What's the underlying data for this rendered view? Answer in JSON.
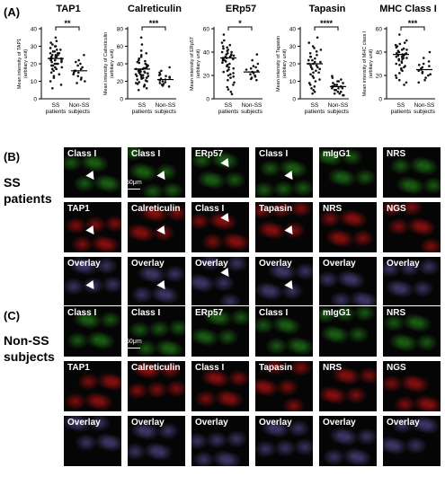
{
  "panel_a_label": "(A)",
  "panel_b_label": "(B)",
  "panel_c_label": "(C)",
  "group_b": "SS patients",
  "group_c": "Non-SS subjects",
  "scale_bar": "50μm",
  "colors": {
    "green": "#1f6f16",
    "red": "#a01010",
    "overlay": "#4a3f7a",
    "white": "#ffffff"
  },
  "chart_data": [
    {
      "type": "scatter",
      "title": "TAP1",
      "ylabel": "Mean intensity of TAP1 (arbitary unit)",
      "categories": [
        "SS patients",
        "Non-SS subjects"
      ],
      "ylim": [
        0,
        40
      ],
      "yticks": [
        0,
        10,
        20,
        30,
        40
      ],
      "significance": "**",
      "means": [
        23,
        16
      ],
      "series": [
        {
          "values": [
            35,
            33,
            32,
            31,
            30,
            30,
            29,
            28,
            28,
            27,
            27,
            26,
            26,
            26,
            25,
            25,
            25,
            24,
            24,
            24,
            23,
            23,
            23,
            22,
            22,
            22,
            21,
            21,
            20,
            20,
            20,
            19,
            19,
            18,
            18,
            17,
            17,
            16,
            15,
            14,
            13,
            12,
            10,
            8,
            6
          ]
        },
        {
          "values": [
            25,
            22,
            21,
            20,
            19,
            18,
            17,
            16,
            16,
            15,
            15,
            14,
            13,
            12,
            11,
            10,
            9
          ]
        }
      ]
    },
    {
      "type": "scatter",
      "title": "Calreticulin",
      "ylabel": "Mean intensity of Calreticulin (arbitary unit)",
      "categories": [
        "SS patients",
        "Non-SS subjects"
      ],
      "ylim": [
        0,
        80
      ],
      "yticks": [
        0,
        20,
        40,
        60,
        80
      ],
      "significance": "***",
      "means": [
        34,
        22
      ],
      "series": [
        {
          "values": [
            70,
            62,
            55,
            52,
            50,
            48,
            46,
            44,
            43,
            42,
            41,
            40,
            39,
            38,
            37,
            36,
            35,
            35,
            34,
            34,
            33,
            33,
            32,
            31,
            31,
            30,
            30,
            29,
            28,
            28,
            27,
            27,
            26,
            26,
            25,
            24,
            24,
            23,
            22,
            21,
            20,
            19,
            18,
            17,
            16,
            15,
            14,
            12,
            10
          ]
        },
        {
          "values": [
            36,
            32,
            30,
            28,
            27,
            26,
            25,
            24,
            23,
            22,
            21,
            20,
            19,
            18,
            17,
            16,
            15,
            14
          ]
        }
      ]
    },
    {
      "type": "scatter",
      "title": "ERp57",
      "ylabel": "Mean intensity of ERp57 (arbitary unit)",
      "categories": [
        "SS patients",
        "Non-SS subjects"
      ],
      "ylim": [
        0,
        60
      ],
      "yticks": [
        0,
        20,
        40,
        60
      ],
      "significance": "*",
      "means": [
        35,
        23
      ],
      "series": [
        {
          "values": [
            55,
            50,
            48,
            46,
            45,
            44,
            43,
            42,
            41,
            40,
            40,
            39,
            38,
            38,
            37,
            37,
            36,
            36,
            35,
            35,
            34,
            34,
            33,
            33,
            32,
            31,
            30,
            29,
            28,
            27,
            26,
            25,
            24,
            23,
            22,
            21,
            20,
            19,
            18,
            16,
            14,
            12,
            10,
            8,
            6,
            4
          ]
        },
        {
          "values": [
            38,
            33,
            30,
            28,
            27,
            26,
            25,
            24,
            23,
            22,
            21,
            20,
            19,
            18,
            17,
            16
          ]
        }
      ]
    },
    {
      "type": "scatter",
      "title": "Tapasin",
      "ylabel": "Mean intensity of Tapasin (arbitary unit)",
      "categories": [
        "SS patients",
        "Non-SS subjects"
      ],
      "ylim": [
        0,
        40
      ],
      "yticks": [
        0,
        10,
        20,
        30,
        40
      ],
      "significance": "****",
      "means": [
        20,
        7
      ],
      "series": [
        {
          "values": [
            35,
            32,
            30,
            29,
            28,
            27,
            26,
            25,
            24,
            24,
            23,
            22,
            22,
            21,
            21,
            20,
            20,
            19,
            19,
            18,
            18,
            17,
            17,
            16,
            15,
            15,
            14,
            13,
            12,
            11,
            10,
            9,
            8,
            7,
            6,
            5,
            4,
            3
          ]
        },
        {
          "values": [
            13,
            12,
            11,
            10,
            10,
            9,
            9,
            8,
            8,
            8,
            7,
            7,
            7,
            6,
            6,
            6,
            5,
            5,
            5,
            4,
            4,
            3,
            3,
            2,
            2
          ]
        }
      ]
    },
    {
      "type": "scatter",
      "title": "MHC Class I",
      "ylabel": "Mean intensity of MHC class I (arbitary unit)",
      "categories": [
        "SS patients",
        "Non-SS subjects"
      ],
      "ylim": [
        0,
        60
      ],
      "yticks": [
        0,
        20,
        40,
        60
      ],
      "significance": "***",
      "means": [
        38,
        25
      ],
      "series": [
        {
          "values": [
            55,
            50,
            48,
            47,
            46,
            45,
            44,
            43,
            42,
            42,
            41,
            40,
            40,
            39,
            39,
            38,
            38,
            37,
            37,
            36,
            36,
            35,
            35,
            34,
            34,
            33,
            32,
            31,
            30,
            29,
            28,
            27,
            26,
            25,
            24,
            22,
            20,
            18,
            16,
            14,
            12
          ]
        },
        {
          "values": [
            40,
            35,
            32,
            30,
            29,
            28,
            27,
            26,
            25,
            24,
            23,
            22,
            21,
            20,
            18,
            16,
            14
          ]
        }
      ]
    }
  ],
  "grid_b": [
    [
      "Class I",
      "Class I",
      "ERp57",
      "Class I",
      "mIgG1",
      "NRS"
    ],
    [
      "TAP1",
      "Calreticulin",
      "Class I",
      "Tapasin",
      "NRS",
      "NGS"
    ],
    [
      "Overlay",
      "Overlay",
      "Overlay",
      "Overlay",
      "Overlay",
      "Overlay"
    ]
  ],
  "grid_c": [
    [
      "Class I",
      "Class I",
      "ERp57",
      "Class I",
      "mIgG1",
      "NRS"
    ],
    [
      "TAP1",
      "Calreticulin",
      "Class I",
      "Tapasin",
      "NRS",
      "NGS"
    ],
    [
      "Overlay",
      "Overlay",
      "Overlay",
      "Overlay",
      "Overlay",
      "Overlay"
    ]
  ]
}
